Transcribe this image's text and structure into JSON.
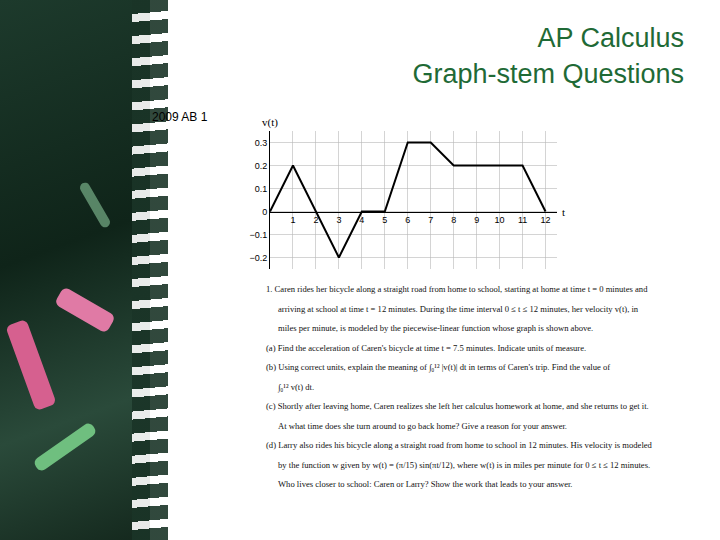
{
  "slide": {
    "title": [
      "AP Calculus",
      "Graph-stem Questions"
    ],
    "label": "2009 AB 1",
    "question": [
      "1. Caren rides her bicycle along a straight road from home to school, starting at home at time t = 0 minutes and",
      "arriving at school at time t = 12 minutes. During the time interval 0 ≤ t ≤ 12 minutes, her velocity v(t), in",
      "miles per minute, is modeled by the piecewise-linear function whose graph is shown above.",
      "(a) Find the acceleration of Caren's bicycle at time t = 7.5 minutes. Indicate units of measure.",
      "(b) Using correct units, explain the meaning of ∫₀¹² |v(t)| dt in terms of Caren's trip. Find the value of",
      "∫₀¹² v(t) dt.",
      "(c) Shortly after leaving home, Caren realizes she left her calculus homework at home, and she returns to get it.",
      "At what time does she turn around to go back home? Give a reason for your answer.",
      "(d) Larry also rides his bicycle along a straight road from home to school in 12 minutes. His velocity is modeled",
      "by the function w given by w(t) = (π/15) sin(πt/12), where w(t) is in miles per minute for 0 ≤ t ≤ 12 minutes.",
      "Who lives closer to school: Caren or Larry? Show the work that leads to your answer."
    ]
  },
  "chart_data": {
    "type": "line",
    "x_label": "t",
    "y_label": "v(t)",
    "x": [
      0,
      1,
      3,
      4,
      5,
      6,
      7,
      8,
      11,
      12
    ],
    "values": [
      0,
      0.2,
      -0.2,
      0,
      0,
      0.3,
      0.3,
      0.2,
      0.2,
      0
    ],
    "color": "#000000",
    "xlim": [
      0,
      12.5
    ],
    "ylim": [
      -0.25,
      0.35
    ],
    "xticks": [
      1,
      2,
      3,
      4,
      5,
      6,
      7,
      8,
      9,
      10,
      11,
      12
    ],
    "yticks": [
      {
        "value": -0.2,
        "label": "−0.2"
      },
      {
        "value": -0.1,
        "label": "−0.1"
      },
      0,
      0.1,
      0.2,
      0.3
    ],
    "grid": true
  }
}
